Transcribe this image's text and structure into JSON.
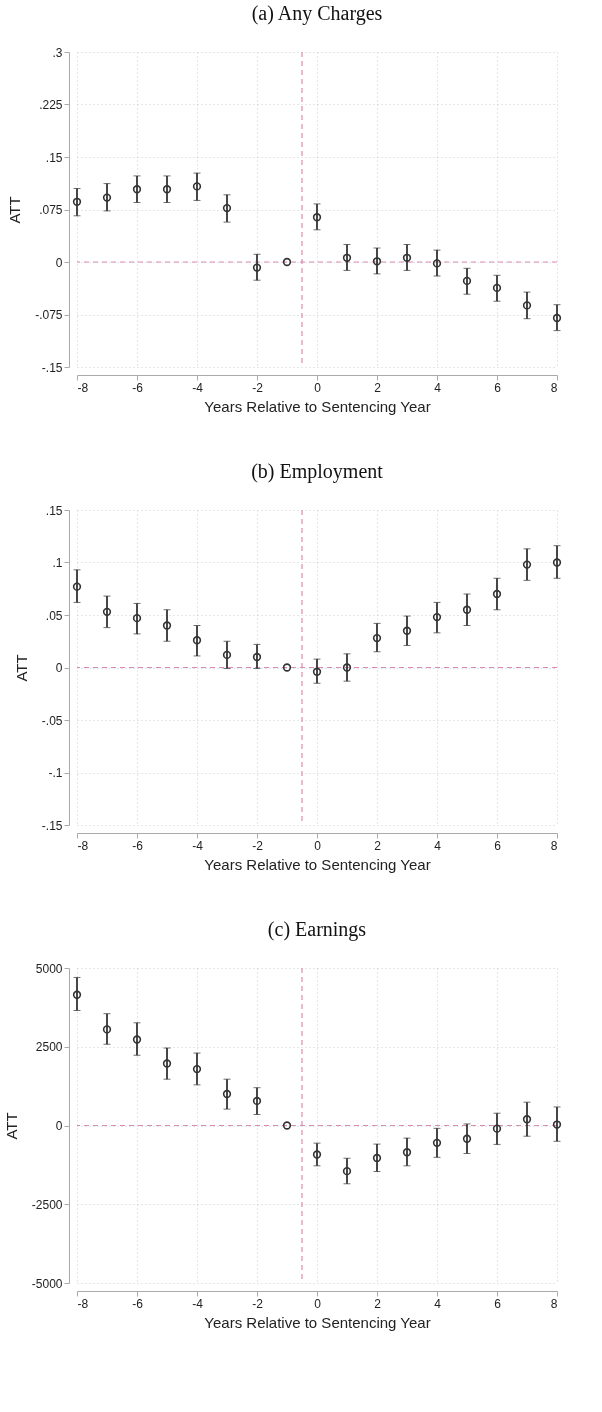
{
  "chart_data": [
    {
      "type": "scatter",
      "title": "(a)  Any Charges",
      "xlabel": "Years Relative to Sentencing Year",
      "ylabel": "ATT",
      "x": [
        -8,
        -7,
        -6,
        -5,
        -4,
        -3,
        -2,
        -1,
        0,
        1,
        2,
        3,
        4,
        5,
        6,
        7,
        8
      ],
      "values": [
        0.086,
        0.092,
        0.104,
        0.104,
        0.108,
        0.077,
        -0.008,
        0,
        0.064,
        0.006,
        0.001,
        0.006,
        -0.002,
        -0.027,
        -0.037,
        -0.062,
        -0.08
      ],
      "errors": [
        [
          0.066,
          0.105
        ],
        [
          0.073,
          0.112
        ],
        [
          0.085,
          0.123
        ],
        [
          0.085,
          0.123
        ],
        [
          0.088,
          0.127
        ],
        [
          0.057,
          0.096
        ],
        [
          -0.026,
          0.011
        ],
        null,
        [
          0.046,
          0.083
        ],
        [
          -0.012,
          0.025
        ],
        [
          -0.017,
          0.02
        ],
        [
          -0.012,
          0.025
        ],
        [
          -0.02,
          0.017
        ],
        [
          -0.046,
          -0.009
        ],
        [
          -0.056,
          -0.019
        ],
        [
          -0.081,
          -0.043
        ],
        [
          -0.098,
          -0.061
        ]
      ],
      "color": "#333333",
      "marker": "circle",
      "grid": true,
      "xlim": [
        -8,
        8
      ],
      "xticks": [
        -8,
        -6,
        -4,
        -2,
        0,
        2,
        4,
        6,
        8
      ],
      "ylim": [
        -0.15,
        0.3
      ],
      "yticks": [
        {
          "value": -0.15,
          "label": "-.15"
        },
        {
          "value": -0.075,
          "label": "-.075"
        },
        0,
        {
          "value": 0.075,
          "label": ".075"
        },
        {
          "value": 0.15,
          "label": ".15"
        },
        {
          "value": 0.225,
          "label": ".225"
        },
        {
          "value": 0.3,
          "label": ".3"
        }
      ],
      "ref_lines": [
        {
          "axis": "y",
          "value": 0,
          "color": "#d98cb3",
          "line_style": "dashed"
        },
        {
          "axis": "x",
          "value": -0.5,
          "color": "#d98cb3",
          "line_style": "dashed"
        }
      ]
    },
    {
      "type": "scatter",
      "title": "(b)  Employment",
      "xlabel": "Years Relative to Sentencing Year",
      "ylabel": "ATT",
      "x": [
        -8,
        -7,
        -6,
        -5,
        -4,
        -3,
        -2,
        -1,
        0,
        1,
        2,
        3,
        4,
        5,
        6,
        7,
        8
      ],
      "values": [
        0.077,
        0.053,
        0.047,
        0.04,
        0.026,
        0.012,
        0.01,
        0,
        -0.004,
        0,
        0.028,
        0.035,
        0.048,
        0.055,
        0.07,
        0.098,
        0.1
      ],
      "errors": [
        [
          0.062,
          0.093
        ],
        [
          0.038,
          0.068
        ],
        [
          0.032,
          0.061
        ],
        [
          0.025,
          0.055
        ],
        [
          0.011,
          0.04
        ],
        [
          -0.001,
          0.025
        ],
        [
          -0.001,
          0.022
        ],
        null,
        [
          -0.015,
          0.008
        ],
        [
          -0.013,
          0.013
        ],
        [
          0.015,
          0.042
        ],
        [
          0.021,
          0.049
        ],
        [
          0.033,
          0.062
        ],
        [
          0.04,
          0.07
        ],
        [
          0.055,
          0.085
        ],
        [
          0.083,
          0.113
        ],
        [
          0.085,
          0.116
        ]
      ],
      "color": "#333333",
      "marker": "circle",
      "grid": true,
      "xlim": [
        -8,
        8
      ],
      "xticks": [
        -8,
        -6,
        -4,
        -2,
        0,
        2,
        4,
        6,
        8
      ],
      "ylim": [
        -0.15,
        0.15
      ],
      "yticks": [
        {
          "value": -0.15,
          "label": "-.15"
        },
        {
          "value": -0.1,
          "label": "-.1"
        },
        {
          "value": -0.05,
          "label": "-.05"
        },
        0,
        {
          "value": 0.05,
          "label": ".05"
        },
        {
          "value": 0.1,
          "label": ".1"
        },
        {
          "value": 0.15,
          "label": ".15"
        }
      ],
      "ref_lines": [
        {
          "axis": "y",
          "value": 0,
          "color": "#d98cb3",
          "line_style": "dashed"
        },
        {
          "axis": "x",
          "value": -0.5,
          "color": "#d98cb3",
          "line_style": "dashed"
        }
      ]
    },
    {
      "type": "scatter",
      "title": "(c)  Earnings",
      "xlabel": "Years Relative to Sentencing Year",
      "ylabel": "ATT",
      "x": [
        -8,
        -7,
        -6,
        -5,
        -4,
        -3,
        -2,
        -1,
        0,
        1,
        2,
        3,
        4,
        5,
        6,
        7,
        8
      ],
      "values": [
        4150,
        3050,
        2730,
        1970,
        1790,
        1000,
        780,
        0,
        -920,
        -1450,
        -1030,
        -850,
        -550,
        -420,
        -100,
        200,
        30
      ],
      "errors": [
        [
          3650,
          4700
        ],
        [
          2580,
          3550
        ],
        [
          2230,
          3260
        ],
        [
          1470,
          2460
        ],
        [
          1290,
          2300
        ],
        [
          520,
          1470
        ],
        [
          350,
          1200
        ],
        null,
        [
          -1280,
          -560
        ],
        [
          -1850,
          -1040
        ],
        [
          -1460,
          -590
        ],
        [
          -1280,
          -400
        ],
        [
          -1010,
          -90
        ],
        [
          -890,
          50
        ],
        [
          -600,
          390
        ],
        [
          -340,
          740
        ],
        [
          -500,
          590
        ]
      ],
      "color": "#333333",
      "marker": "circle",
      "grid": true,
      "xlim": [
        -8,
        8
      ],
      "xticks": [
        -8,
        -6,
        -4,
        -2,
        0,
        2,
        4,
        6,
        8
      ],
      "ylim": [
        -5000,
        5000
      ],
      "yticks": [
        -5000,
        -2500,
        0,
        2500,
        5000
      ],
      "ref_lines": [
        {
          "axis": "y",
          "value": 0,
          "color": "#d98cb3",
          "line_style": "dashed"
        },
        {
          "axis": "x",
          "value": -0.5,
          "color": "#d98cb3",
          "line_style": "dashed"
        }
      ]
    }
  ]
}
